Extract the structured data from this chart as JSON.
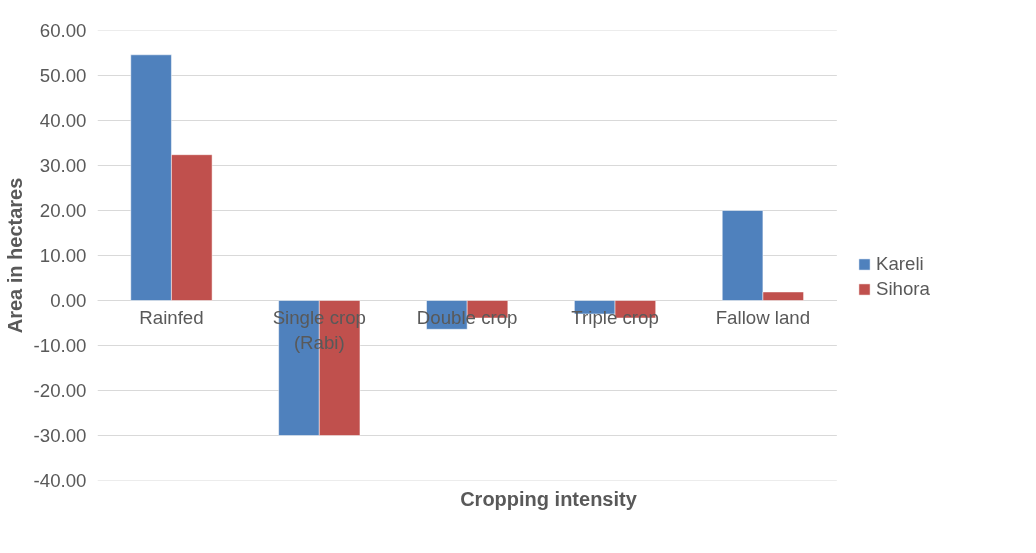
{
  "chart_data": {
    "type": "bar",
    "xlabel": "Cropping intensity",
    "ylabel": "Area in hectares",
    "categories": [
      "Rainfed",
      "Single crop (Rabi)",
      "Double crop",
      "Triple crop",
      "Fallow land"
    ],
    "series": [
      {
        "name": "Kareli",
        "color": "#4f81bd",
        "values": [
          54.6,
          -30.0,
          -6.4,
          -3.0,
          20.0
        ]
      },
      {
        "name": "Sihora",
        "color": "#c0504d",
        "values": [
          32.4,
          -30.0,
          -3.9,
          -3.9,
          1.9
        ]
      }
    ],
    "ylim": [
      -40,
      60
    ],
    "yticks": [
      {
        "value": -40,
        "label": "-40.00"
      },
      {
        "value": -30,
        "label": "-30.00"
      },
      {
        "value": -20,
        "label": "-20.00"
      },
      {
        "value": -10,
        "label": "-10.00"
      },
      {
        "value": 0,
        "label": "0.00"
      },
      {
        "value": 10,
        "label": "10.00"
      },
      {
        "value": 20,
        "label": "20.00"
      },
      {
        "value": 30,
        "label": "30.00"
      },
      {
        "value": 40,
        "label": "40.00"
      },
      {
        "value": 50,
        "label": "50.00"
      },
      {
        "value": 60,
        "label": "60.00"
      }
    ],
    "grid": "y",
    "legend": "right"
  }
}
